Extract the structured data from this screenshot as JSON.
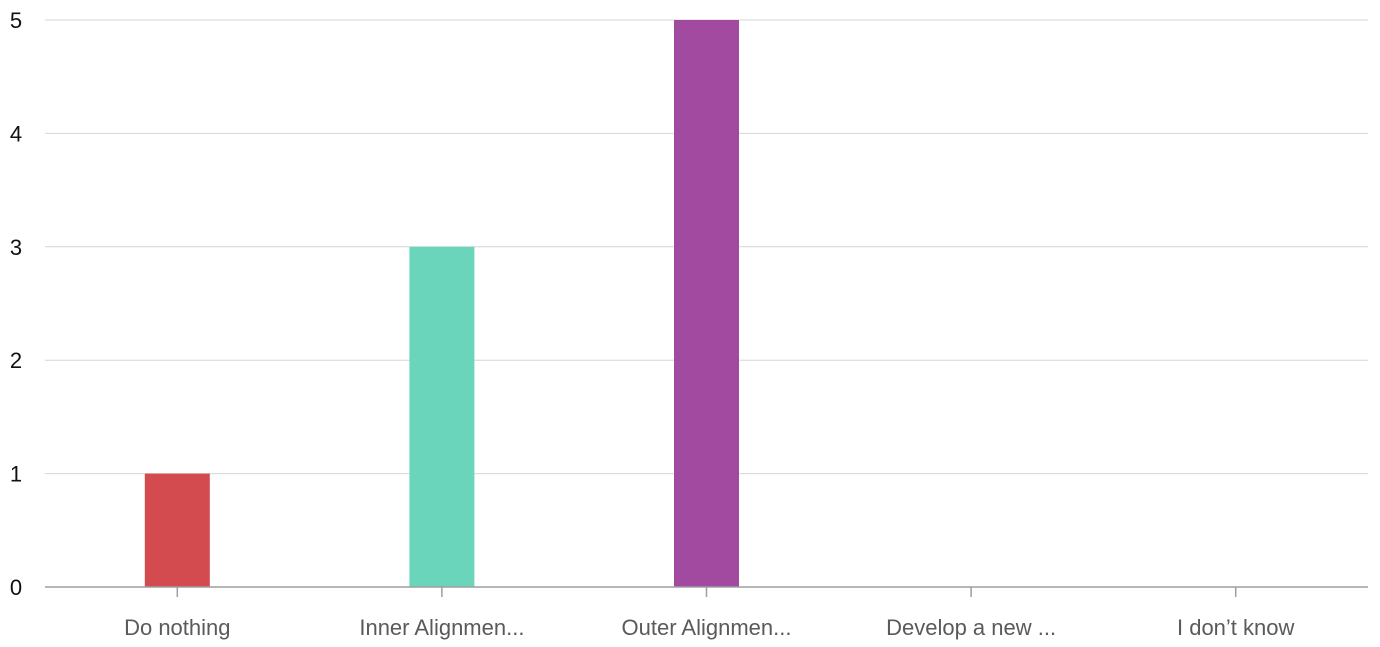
{
  "chart_data": {
    "type": "bar",
    "categories": [
      "Do nothing",
      "Inner Alignmen...",
      "Outer Alignmen...",
      "Develop a new ...",
      "I don’t know"
    ],
    "values": [
      1,
      3,
      5,
      0,
      0
    ],
    "colors": [
      "#d34b4f",
      "#6ad5bb",
      "#a14aa0",
      "#4a6fdc",
      "#f2b134"
    ],
    "ylim": [
      0,
      5
    ],
    "yticks": [
      0,
      1,
      2,
      3,
      4,
      5
    ],
    "grid": true,
    "title": "",
    "xlabel": "",
    "ylabel": ""
  }
}
